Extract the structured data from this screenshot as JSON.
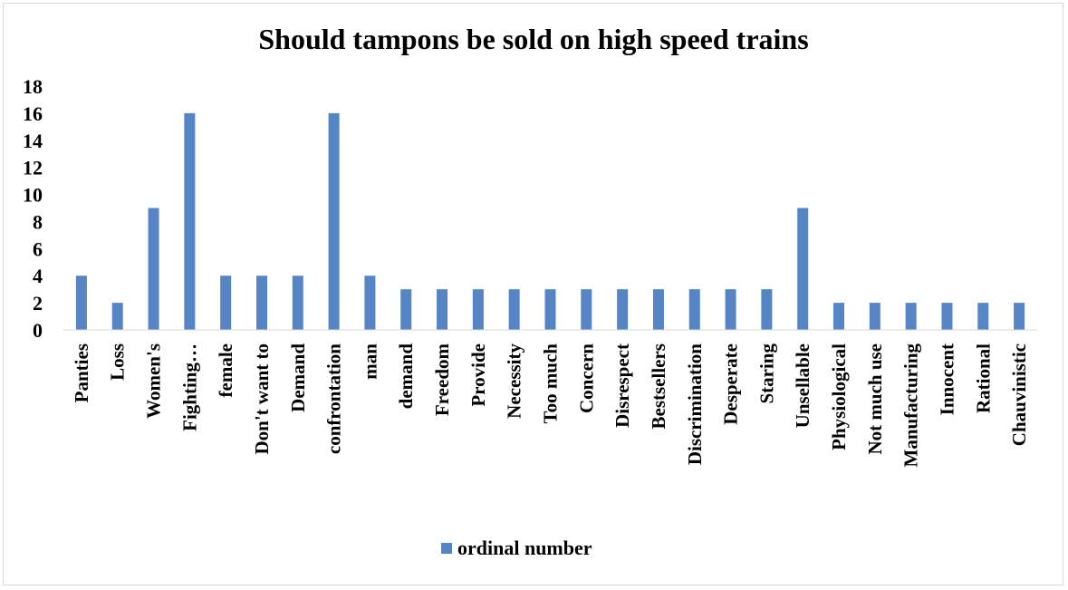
{
  "chart_data": {
    "type": "bar",
    "title": "Should tampons be sold on high speed trains",
    "xlabel": "",
    "ylabel": "",
    "ylim": [
      0,
      18
    ],
    "y_ticks": [
      "0",
      "2",
      "4",
      "6",
      "8",
      "10",
      "12",
      "14",
      "16",
      "18"
    ],
    "grid": false,
    "legend_position": "bottom",
    "categories": [
      "Panties",
      "Loss",
      "Women's",
      "Fighting…",
      "female",
      "Don't want to",
      "Demand",
      "confrontation",
      "man",
      "demand",
      "Freedom",
      "Provide",
      "Necessity",
      "Too much",
      "Concern",
      "Disrespect",
      "Bestsellers",
      "Discrimination",
      "Desperate",
      "Staring",
      "Unsellable",
      "Physiological",
      "Not much use",
      "Manufacturing",
      "Innocent",
      "Rational",
      "Chauvinistic"
    ],
    "series": [
      {
        "name": "ordinal number",
        "color": "#5585c5",
        "values": [
          4,
          2,
          9,
          16,
          4,
          4,
          4,
          16,
          4,
          3,
          3,
          3,
          3,
          3,
          3,
          3,
          3,
          3,
          3,
          3,
          9,
          2,
          2,
          2,
          2,
          2,
          2
        ]
      }
    ]
  }
}
